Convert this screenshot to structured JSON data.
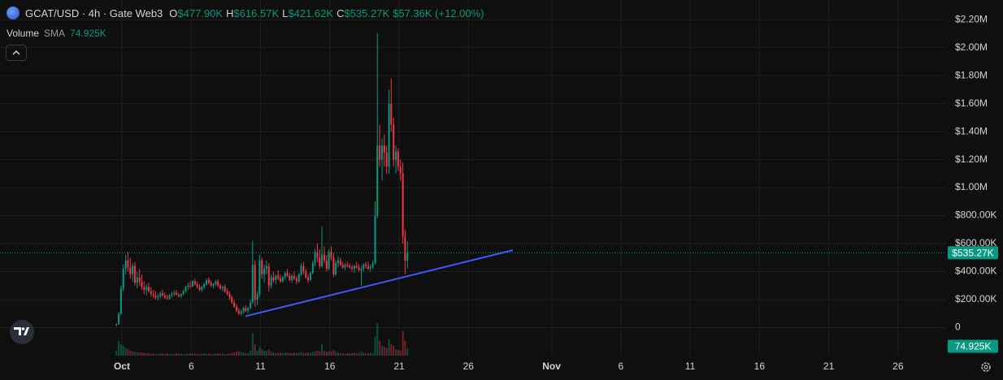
{
  "chart_data": {
    "type": "candlestick",
    "header": {
      "symbol": "GCAT/USD · 4h · Gate Web3",
      "ohlc": [
        {
          "label": "O",
          "value": "$477.90K"
        },
        {
          "label": "H",
          "value": "$616.57K"
        },
        {
          "label": "L",
          "value": "$421.62K"
        },
        {
          "label": "C",
          "value": "$535.27K"
        }
      ],
      "change": "$57.36K (+12.00%)",
      "volume_label": "Volume",
      "sma_label": "SMA",
      "sma_value": "74.925K"
    },
    "up_color": "#089981",
    "down_color": "#f23645",
    "grid": true,
    "xlim": [
      -7.8,
      60.47
    ],
    "xticks": [
      {
        "value": 1,
        "label": "Oct"
      },
      6,
      11,
      16,
      21,
      26,
      {
        "value": 32,
        "label": "Nov"
      },
      {
        "value": 37,
        "label": "6"
      },
      {
        "value": 42,
        "label": "11"
      },
      {
        "value": 47,
        "label": "16"
      },
      {
        "value": 52,
        "label": "21"
      },
      {
        "value": 57,
        "label": "26"
      }
    ],
    "ylim": [
      -200000,
      2340000
    ],
    "yticks": [
      0,
      {
        "value": 200000,
        "label": "$200.00K"
      },
      {
        "value": 400000,
        "label": "$400.00K"
      },
      {
        "value": 600000,
        "label": "$600.00K"
      },
      {
        "value": 800000,
        "label": "$800.00K"
      },
      {
        "value": 1000000,
        "label": "$1.00M"
      },
      {
        "value": 1200000,
        "label": "$1.20M"
      },
      {
        "value": 1400000,
        "label": "$1.40M"
      },
      {
        "value": 1600000,
        "label": "$1.60M"
      },
      {
        "value": 1800000,
        "label": "$1.80M"
      },
      {
        "value": 2000000,
        "label": "$2.00M"
      },
      {
        "value": 2200000,
        "label": "$2.20M"
      }
    ],
    "x": [
      0.6,
      0.77,
      0.93,
      1.1,
      1.27,
      1.43,
      1.6,
      1.77,
      1.93,
      2.1,
      2.27,
      2.43,
      2.6,
      2.77,
      2.93,
      3.1,
      3.27,
      3.43,
      3.6,
      3.77,
      3.93,
      4.1,
      4.27,
      4.43,
      4.6,
      4.77,
      4.93,
      5.1,
      5.27,
      5.43,
      5.6,
      5.77,
      5.93,
      6.1,
      6.27,
      6.43,
      6.6,
      6.77,
      6.93,
      7.1,
      7.27,
      7.43,
      7.6,
      7.77,
      7.93,
      8.1,
      8.27,
      8.43,
      8.6,
      8.77,
      8.93,
      9.1,
      9.27,
      9.43,
      9.6,
      9.77,
      9.93,
      10.1,
      10.27,
      10.43,
      10.6,
      10.77,
      10.93,
      11.1,
      11.27,
      11.43,
      11.6,
      11.77,
      11.93,
      12.1,
      12.27,
      12.43,
      12.6,
      12.77,
      12.93,
      13.1,
      13.27,
      13.43,
      13.6,
      13.77,
      13.93,
      14.1,
      14.27,
      14.43,
      14.6,
      14.77,
      14.93,
      15.1,
      15.27,
      15.43,
      15.6,
      15.77,
      15.93,
      16.1,
      16.27,
      16.43,
      16.6,
      16.77,
      16.93,
      17.1,
      17.27,
      17.43,
      17.6,
      17.77,
      17.93,
      18.1,
      18.27,
      18.43,
      18.6,
      18.77,
      18.93,
      19.1,
      19.27,
      19.43,
      19.6,
      19.77,
      19.93,
      20.1,
      20.27,
      20.43,
      20.6,
      20.77,
      20.93,
      21.1,
      21.27,
      21.43,
      21.6
    ],
    "open": [
      20000,
      25000,
      100000,
      280000,
      420000,
      480000,
      430000,
      380000,
      440000,
      320000,
      360000,
      330000,
      290000,
      270000,
      290000,
      260000,
      240000,
      230000,
      215000,
      225000,
      245000,
      230000,
      215000,
      210000,
      230000,
      240000,
      250000,
      235000,
      225000,
      240000,
      260000,
      290000,
      300000,
      295000,
      330000,
      310000,
      290000,
      270000,
      290000,
      310000,
      340000,
      320000,
      300000,
      310000,
      330000,
      300000,
      280000,
      290000,
      260000,
      240000,
      215000,
      180000,
      150000,
      120000,
      100000,
      115000,
      140000,
      120000,
      140000,
      180000,
      450000,
      200000,
      240000,
      480000,
      380000,
      420000,
      440000,
      300000,
      360000,
      340000,
      370000,
      350000,
      330000,
      360000,
      390000,
      370000,
      340000,
      370000,
      350000,
      330000,
      380000,
      440000,
      400000,
      360000,
      340000,
      390000,
      460000,
      540000,
      500000,
      440000,
      520000,
      480000,
      420000,
      540000,
      500000,
      380000,
      460000,
      480000,
      450000,
      430000,
      450000,
      440000,
      430000,
      420000,
      440000,
      430000,
      410000,
      420000,
      450000,
      440000,
      420000,
      430000,
      460000,
      800000,
      1300000,
      1200000,
      1300000,
      1250000,
      1150000,
      1600000,
      1450000,
      1200000,
      1260000,
      1150000,
      1100000,
      650000,
      477900
    ],
    "high": [
      30000,
      110000,
      300000,
      450000,
      520000,
      540000,
      500000,
      460000,
      470000,
      400000,
      420000,
      380000,
      330000,
      310000,
      320000,
      290000,
      270000,
      260000,
      240000,
      260000,
      270000,
      250000,
      235000,
      240000,
      255000,
      265000,
      270000,
      250000,
      245000,
      270000,
      300000,
      320000,
      330000,
      340000,
      350000,
      330000,
      310000,
      300000,
      320000,
      350000,
      360000,
      335000,
      320000,
      340000,
      345000,
      315000,
      300000,
      310000,
      280000,
      260000,
      230000,
      200000,
      170000,
      140000,
      130000,
      150000,
      160000,
      150000,
      200000,
      620000,
      480000,
      260000,
      520000,
      500000,
      450000,
      480000,
      460000,
      380000,
      400000,
      380000,
      410000,
      380000,
      370000,
      400000,
      420000,
      390000,
      380000,
      400000,
      370000,
      390000,
      460000,
      470000,
      420000,
      380000,
      400000,
      480000,
      560000,
      600000,
      560000,
      720000,
      580000,
      520000,
      560000,
      580000,
      530000,
      480000,
      510000,
      500000,
      470000,
      460000,
      470000,
      460000,
      450000,
      450000,
      470000,
      450000,
      440000,
      460000,
      470000,
      470000,
      450000,
      480000,
      900000,
      2100000,
      1450000,
      1350000,
      1380000,
      1300000,
      1700000,
      1780000,
      1500000,
      1300000,
      1280000,
      1200000,
      1180000,
      700000,
      616570
    ],
    "low": [
      10000,
      20000,
      90000,
      260000,
      380000,
      400000,
      350000,
      330000,
      300000,
      280000,
      300000,
      270000,
      240000,
      230000,
      250000,
      220000,
      210000,
      200000,
      195000,
      210000,
      220000,
      205000,
      200000,
      200000,
      215000,
      225000,
      230000,
      215000,
      210000,
      230000,
      250000,
      270000,
      280000,
      290000,
      300000,
      280000,
      260000,
      255000,
      280000,
      300000,
      310000,
      290000,
      280000,
      300000,
      290000,
      270000,
      260000,
      250000,
      230000,
      200000,
      170000,
      140000,
      110000,
      90000,
      85000,
      100000,
      110000,
      100000,
      130000,
      170000,
      150000,
      160000,
      220000,
      350000,
      320000,
      380000,
      260000,
      280000,
      320000,
      310000,
      340000,
      320000,
      320000,
      340000,
      360000,
      330000,
      320000,
      340000,
      310000,
      320000,
      370000,
      380000,
      350000,
      320000,
      330000,
      380000,
      440000,
      470000,
      420000,
      430000,
      460000,
      400000,
      410000,
      480000,
      360000,
      370000,
      430000,
      440000,
      420000,
      410000,
      430000,
      420000,
      400000,
      390000,
      420000,
      400000,
      300000,
      400000,
      420000,
      410000,
      400000,
      420000,
      450000,
      780000,
      1150000,
      1050000,
      1150000,
      1100000,
      1100000,
      1400000,
      1150000,
      1100000,
      1120000,
      1050000,
      600000,
      380000,
      421620
    ],
    "close": [
      25000,
      100000,
      280000,
      420000,
      480000,
      430000,
      380000,
      440000,
      320000,
      360000,
      330000,
      290000,
      270000,
      290000,
      260000,
      240000,
      230000,
      215000,
      225000,
      245000,
      230000,
      215000,
      210000,
      230000,
      240000,
      250000,
      235000,
      225000,
      240000,
      260000,
      290000,
      300000,
      295000,
      330000,
      310000,
      290000,
      270000,
      290000,
      310000,
      340000,
      320000,
      300000,
      310000,
      330000,
      300000,
      280000,
      290000,
      260000,
      240000,
      215000,
      180000,
      150000,
      120000,
      100000,
      115000,
      140000,
      120000,
      140000,
      180000,
      450000,
      200000,
      240000,
      480000,
      380000,
      420000,
      440000,
      300000,
      360000,
      340000,
      370000,
      350000,
      330000,
      360000,
      390000,
      370000,
      340000,
      370000,
      350000,
      330000,
      380000,
      440000,
      400000,
      360000,
      340000,
      390000,
      460000,
      540000,
      500000,
      440000,
      520000,
      480000,
      420000,
      540000,
      500000,
      380000,
      460000,
      480000,
      450000,
      430000,
      450000,
      440000,
      430000,
      420000,
      440000,
      430000,
      410000,
      420000,
      450000,
      440000,
      420000,
      430000,
      460000,
      800000,
      1300000,
      1200000,
      1300000,
      1250000,
      1150000,
      1600000,
      1450000,
      1200000,
      1260000,
      1150000,
      1100000,
      650000,
      477900,
      535270
    ],
    "volume": [
      40000,
      120000,
      90000,
      80000,
      60000,
      50000,
      40000,
      35000,
      30000,
      30000,
      25000,
      25000,
      20000,
      20000,
      20000,
      15000,
      18000,
      12000,
      14000,
      16000,
      20000,
      15000,
      18000,
      12000,
      14000,
      16000,
      20000,
      15000,
      18000,
      12000,
      14000,
      16000,
      20000,
      15000,
      18000,
      12000,
      14000,
      16000,
      20000,
      15000,
      18000,
      12000,
      14000,
      16000,
      20000,
      15000,
      18000,
      12000,
      14000,
      16000,
      20000,
      25000,
      30000,
      35000,
      30000,
      25000,
      20000,
      20000,
      40000,
      180000,
      90000,
      40000,
      70000,
      50000,
      40000,
      35000,
      45000,
      30000,
      25000,
      20000,
      22000,
      25000,
      20000,
      24000,
      26000,
      20000,
      22000,
      25000,
      20000,
      24000,
      30000,
      22000,
      20000,
      25000,
      24000,
      30000,
      35000,
      40000,
      35000,
      90000,
      40000,
      30000,
      35000,
      35000,
      45000,
      30000,
      25000,
      20000,
      20000,
      15000,
      20000,
      18000,
      22000,
      25000,
      18000,
      20000,
      35000,
      22000,
      18000,
      20000,
      24000,
      20000,
      150000,
      260000,
      120000,
      80000,
      70000,
      60000,
      130000,
      90000,
      80000,
      50000,
      45000,
      40000,
      200000,
      120000,
      60000
    ],
    "volume_sma": {
      "value": 74925,
      "label": "74.925K"
    },
    "last_price": {
      "value": 535270,
      "label": "$535.27K"
    },
    "trendline": {
      "color": "#3d5afe",
      "points": [
        [
          9.91,
          81500
        ],
        [
          29.2,
          553000
        ]
      ]
    }
  }
}
